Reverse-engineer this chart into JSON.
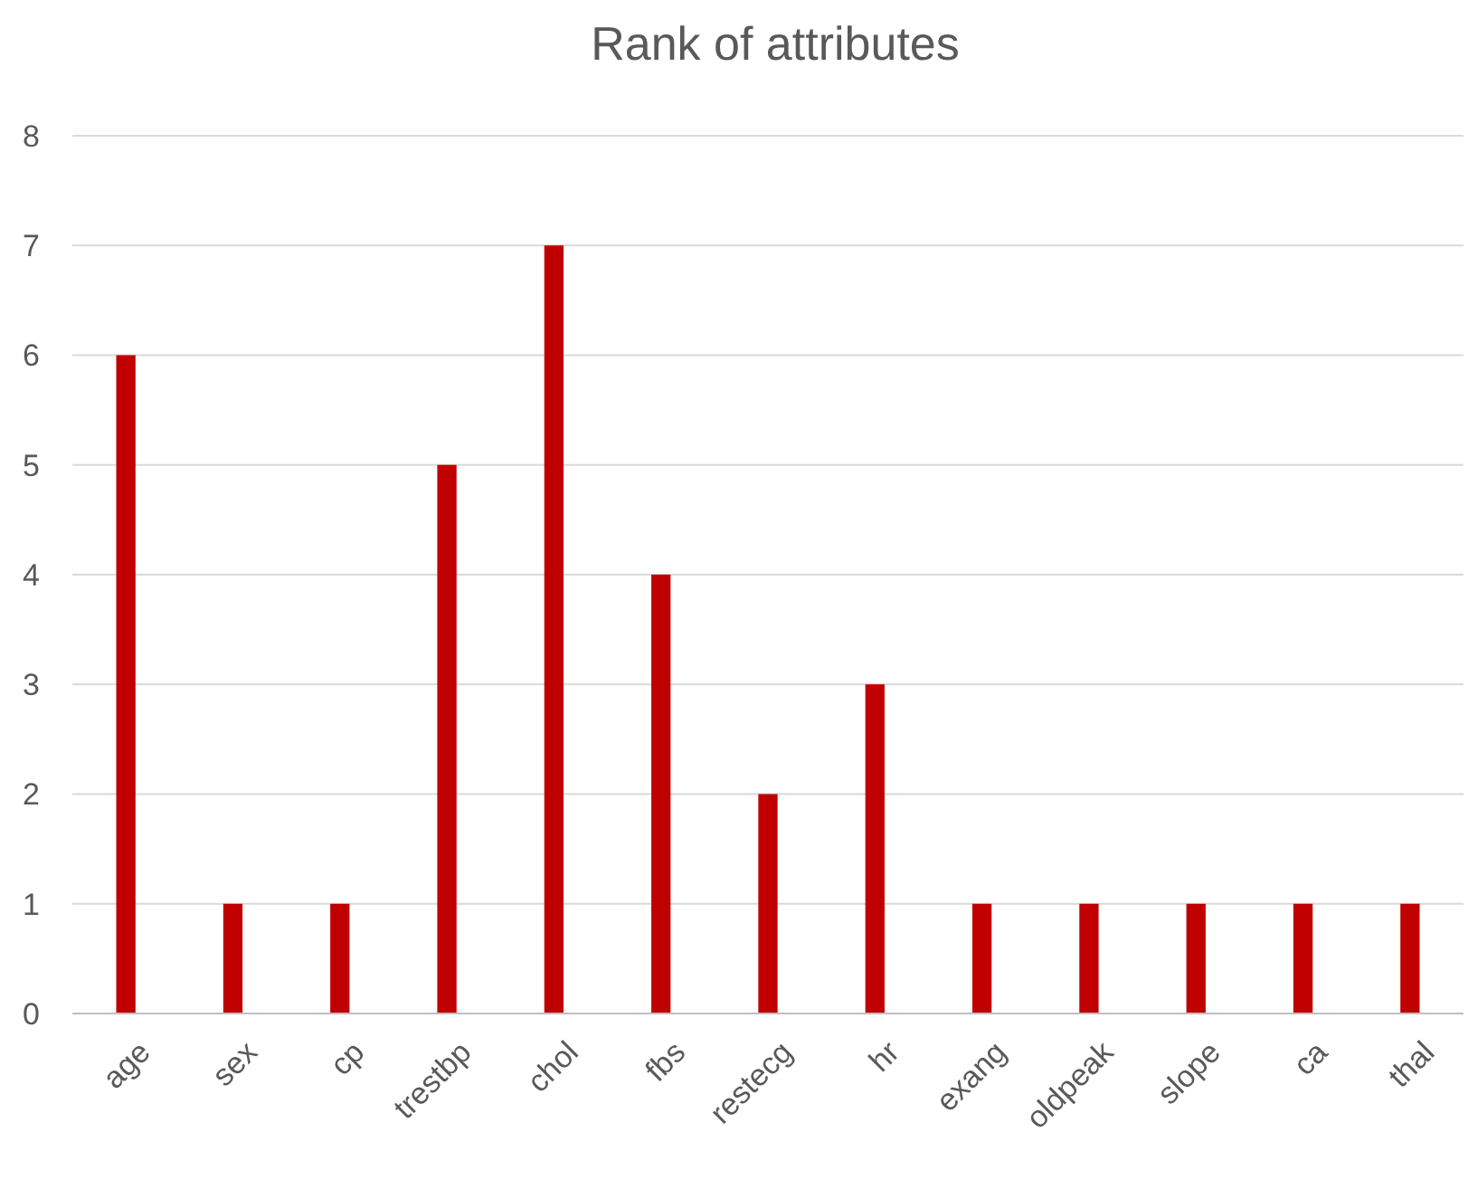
{
  "chart_data": {
    "type": "bar",
    "title": "Rank of attributes",
    "categories": [
      "age",
      "sex",
      "cp",
      "trestbp",
      "chol",
      "fbs",
      "restecg",
      "hr",
      "exang",
      "oldpeak",
      "slope",
      "ca",
      "thal"
    ],
    "values": [
      6,
      1,
      1,
      5,
      7,
      4,
      2,
      3,
      1,
      1,
      1,
      1,
      1
    ],
    "color": "#c00000",
    "ylim": [
      0,
      8
    ],
    "yticks": [
      0,
      1,
      2,
      3,
      4,
      5,
      6,
      7,
      8
    ],
    "grid": "y"
  }
}
